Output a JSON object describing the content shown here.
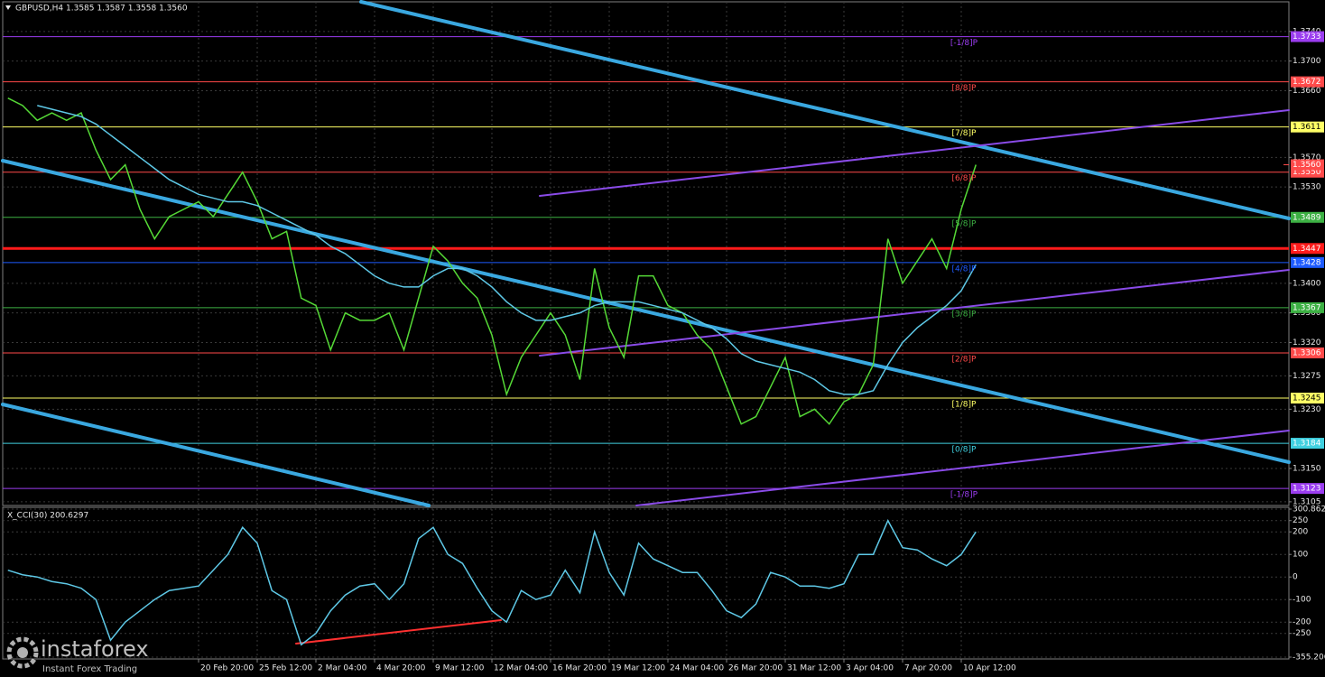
{
  "chart_data": [
    {
      "type": "line",
      "title": "GBPUSD,H4  1.3585 1.3587 1.3558 1.3560",
      "categories": [
        null,
        null,
        null,
        null,
        null,
        null,
        null,
        null,
        null,
        null,
        null,
        null,
        null,
        "20 Feb 20:00",
        null,
        null,
        null,
        "25 Feb 12:00",
        null,
        null,
        null,
        "2 Mar 04:00",
        null,
        null,
        null,
        "4 Mar 20:00",
        null,
        null,
        null,
        "9 Mar 12:00",
        null,
        null,
        null,
        "12 Mar 04:00",
        null,
        null,
        null,
        "16 Mar 20:00",
        null,
        null,
        null,
        "19 Mar 12:00",
        null,
        null,
        null,
        "24 Mar 04:00",
        null,
        null,
        null,
        "26 Mar 20:00",
        null,
        null,
        null,
        "31 Mar 12:00",
        null,
        null,
        null,
        "3 Apr 04:00",
        null,
        null,
        null,
        "7 Apr 20:00",
        null,
        null,
        null,
        "10 Apr 12:00",
        null
      ],
      "series": [
        {
          "color": "#55d936",
          "values": [
            1.365,
            1.364,
            1.362,
            1.363,
            1.362,
            1.363,
            1.358,
            1.354,
            1.356,
            1.35,
            1.346,
            1.349,
            1.35,
            1.351,
            1.349,
            1.352,
            1.355,
            1.351,
            1.346,
            1.347,
            1.338,
            1.337,
            1.331,
            1.336,
            1.335,
            1.335,
            1.336,
            1.331,
            1.338,
            1.345,
            1.343,
            1.34,
            1.338,
            1.333,
            1.325,
            1.33,
            1.333,
            1.336,
            1.333,
            1.327,
            1.342,
            1.334,
            1.33,
            1.341,
            1.341,
            1.337,
            1.336,
            1.333,
            1.331,
            1.326,
            1.321,
            1.322,
            1.326,
            1.33,
            1.322,
            1.323,
            1.321,
            1.324,
            1.325,
            1.329,
            1.346,
            1.34,
            1.343,
            1.346,
            1.342,
            1.35,
            1.356
          ]
        },
        {
          "color": "#5ec8e6",
          "values": [
            null,
            null,
            1.364,
            1.3635,
            1.363,
            1.3625,
            1.3615,
            1.36,
            1.3585,
            1.357,
            1.3555,
            1.354,
            1.353,
            1.352,
            1.3515,
            1.351,
            1.351,
            1.3505,
            1.3495,
            1.3485,
            1.3475,
            1.3465,
            1.345,
            1.344,
            1.3425,
            1.341,
            1.34,
            1.3395,
            1.3395,
            1.341,
            1.342,
            1.342,
            1.341,
            1.3395,
            1.3375,
            1.336,
            1.335,
            1.335,
            1.3355,
            1.336,
            1.337,
            1.3375,
            1.3375,
            1.3375,
            1.337,
            1.3365,
            1.336,
            1.335,
            1.334,
            1.3325,
            1.3305,
            1.3295,
            1.329,
            1.3285,
            1.328,
            1.327,
            1.3255,
            1.325,
            1.325,
            1.3255,
            1.329,
            1.332,
            1.334,
            1.3355,
            1.337,
            1.339,
            1.3425
          ]
        }
      ],
      "ylim": [
        1.31,
        1.378
      ],
      "yticks": [
        {
          "value": 1.374,
          "label": "1.3740"
        },
        {
          "value": 1.37,
          "label": "1.3700"
        },
        {
          "value": 1.366,
          "label": "1.3660"
        },
        {
          "value": 1.357,
          "label": "1.3570"
        },
        {
          "value": 1.353,
          "label": "1.3530"
        },
        {
          "value": 1.34,
          "label": "1.3400"
        },
        {
          "value": 1.336,
          "label": "1.3360"
        },
        {
          "value": 1.332,
          "label": "1.3320"
        },
        {
          "value": 1.3275,
          "label": "1.3275"
        },
        {
          "value": 1.323,
          "label": "1.3230"
        },
        {
          "value": 1.315,
          "label": "1.3150"
        },
        {
          "value": 1.3105,
          "label": "1.3105"
        }
      ],
      "grid": true,
      "levels": [
        {
          "label": "[-1/8]P",
          "value": 1.3733,
          "value_label": "1.3733",
          "color": "#9b3df0"
        },
        {
          "label": "[8/8]P",
          "value": 1.3672,
          "value_label": "1.3672",
          "color": "#ff4a4a"
        },
        {
          "label": "[7/8]P",
          "value": 1.3611,
          "value_label": "1.3611",
          "color": "#ffff66"
        },
        {
          "label": "[6/8]P",
          "value": 1.355,
          "value_label": "1.3550",
          "color": "#ff4a4a"
        },
        {
          "label": "[5/8]P",
          "value": 1.3489,
          "value_label": "1.3489",
          "color": "#3cb043"
        },
        {
          "value": 1.3447,
          "value_label": "1.3447",
          "color": "#ff1a1a"
        },
        {
          "label": "[4/8]P",
          "value": 1.3428,
          "value_label": "1.3428",
          "color": "#1e5bff"
        },
        {
          "label": "[3/8]P",
          "value": 1.3367,
          "value_label": "1.3367",
          "color": "#3cb043"
        },
        {
          "label": "[2/8]P",
          "value": 1.3306,
          "value_label": "1.3306",
          "color": "#ff4a4a"
        },
        {
          "label": "[1/8]P",
          "value": 1.3245,
          "value_label": "1.3245",
          "color": "#ffff66"
        },
        {
          "label": "[0/8]P",
          "value": 1.3184,
          "value_label": "1.3184",
          "color": "#40d0e0"
        },
        {
          "label": "[-1/8]P",
          "value": 1.3123,
          "value_label": "1.3123",
          "color": "#9b3df0"
        }
      ],
      "price_tag": {
        "value": 1.356,
        "label": "1.3560",
        "color": "#ff4a4a"
      }
    },
    {
      "type": "line",
      "title": "X_CCI(30) 200.6297",
      "series": [
        {
          "color": "#5ec8e6",
          "values": [
            30,
            10,
            0,
            -20,
            -30,
            -50,
            -100,
            -280,
            -200,
            -150,
            -100,
            -60,
            -50,
            -40,
            30,
            100,
            220,
            150,
            -60,
            -100,
            -300,
            -250,
            -150,
            -80,
            -40,
            -30,
            -100,
            -30,
            170,
            220,
            100,
            60,
            -50,
            -150,
            -200,
            -60,
            -100,
            -80,
            30,
            -70,
            200,
            20,
            -80,
            150,
            80,
            50,
            20,
            20,
            -60,
            -150,
            -180,
            -120,
            20,
            0,
            -40,
            -40,
            -50,
            -30,
            100,
            100,
            250,
            130,
            120,
            80,
            50,
            100,
            200
          ]
        }
      ],
      "ylim": [
        -355.206,
        300.8623
      ],
      "yticks": [
        300.8623,
        250,
        200,
        100,
        0,
        -100,
        -200,
        -250,
        -355.206
      ],
      "grid": true
    }
  ],
  "watermark": {
    "name": "instaforex",
    "tagline": "Instant Forex Trading"
  }
}
